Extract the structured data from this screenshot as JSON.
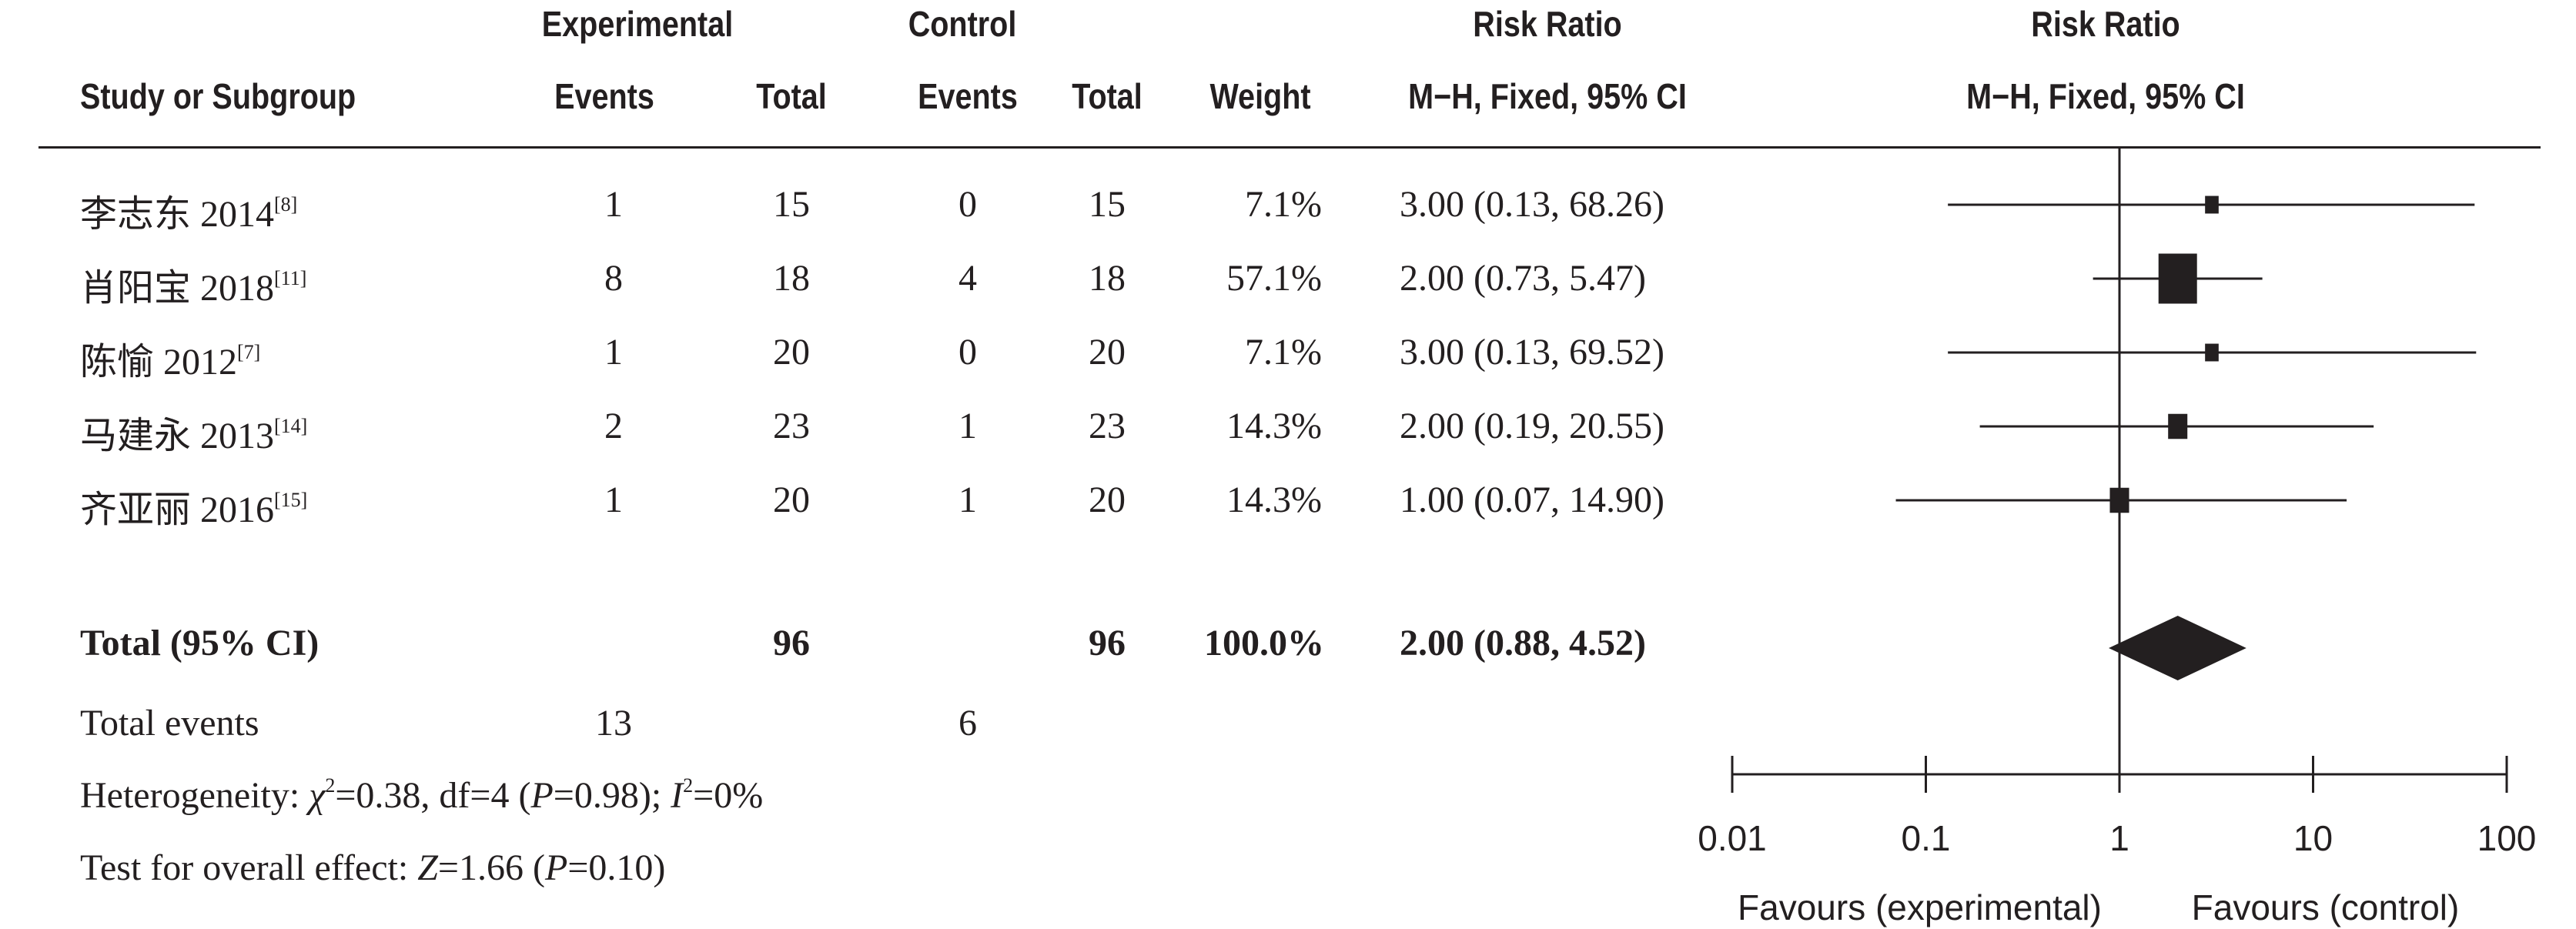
{
  "header": {
    "group_exp": "Experimental",
    "group_ctrl": "Control",
    "rr_top": "Risk Ratio",
    "rr_plot_top": "Risk Ratio",
    "study": "Study or Subgroup",
    "exp_events": "Events",
    "exp_total": "Total",
    "ctrl_events": "Events",
    "ctrl_total": "Total",
    "weight": "Weight",
    "rr_method": "M−H, Fixed, 95% CI",
    "rr_plot_method": "M−H, Fixed, 95% CI"
  },
  "studies": [
    {
      "name": "李志东 2014",
      "ref": "[8]",
      "exp_events": "1",
      "exp_total": "15",
      "ctrl_events": "0",
      "ctrl_total": "15",
      "weight": "7.1%",
      "rr_ci": "3.00 (0.13, 68.26)"
    },
    {
      "name": "肖阳宝 2018",
      "ref": "[11]",
      "exp_events": "8",
      "exp_total": "18",
      "ctrl_events": "4",
      "ctrl_total": "18",
      "weight": "57.1%",
      "rr_ci": "2.00 (0.73, 5.47)"
    },
    {
      "name": "陈愉 2012",
      "ref": "[7]",
      "exp_events": "1",
      "exp_total": "20",
      "ctrl_events": "0",
      "ctrl_total": "20",
      "weight": "7.1%",
      "rr_ci": "3.00 (0.13, 69.52)"
    },
    {
      "name": "马建永 2013",
      "ref": "[14]",
      "exp_events": "2",
      "exp_total": "23",
      "ctrl_events": "1",
      "ctrl_total": "23",
      "weight": "14.3%",
      "rr_ci": "2.00 (0.19, 20.55)"
    },
    {
      "name": "齐亚丽 2016",
      "ref": "[15]",
      "exp_events": "1",
      "exp_total": "20",
      "ctrl_events": "1",
      "ctrl_total": "20",
      "weight": "14.3%",
      "rr_ci": "1.00 (0.07, 14.90)"
    }
  ],
  "total": {
    "label": "Total (95% CI)",
    "exp_total": "96",
    "ctrl_total": "96",
    "weight": "100.0%",
    "rr_ci": "2.00 (0.88, 4.52)"
  },
  "total_events": {
    "label": "Total events",
    "exp": "13",
    "ctrl": "6"
  },
  "heterogeneity": {
    "prefix": "Heterogeneity: ",
    "chi_sym": "χ",
    "chi_sup": "2",
    "chi_val": "=0.38, df=4 (",
    "p_sym": "P",
    "p_val": "=0.98); ",
    "i_sym": "I",
    "i_sup": "2",
    "i_val": "=0%"
  },
  "overall_effect": {
    "prefix": "Test for overall effect: ",
    "z_sym": "Z",
    "z_val": "=1.66 (",
    "p_sym": "P",
    "p_val": "=0.10)"
  },
  "chart_data": {
    "type": "forest",
    "scale": "log",
    "xlim": [
      0.01,
      100
    ],
    "ticks": [
      0.01,
      0.1,
      1,
      10,
      100
    ],
    "tick_labels": [
      "0.01",
      "0.1",
      "1",
      "10",
      "100"
    ],
    "null_value": 1,
    "left_label": "Favours (experimental)",
    "right_label": "Favours (control)",
    "studies": [
      {
        "rr": 3.0,
        "lo": 0.13,
        "hi": 68.26,
        "weight": 7.1
      },
      {
        "rr": 2.0,
        "lo": 0.73,
        "hi": 5.47,
        "weight": 57.1
      },
      {
        "rr": 3.0,
        "lo": 0.13,
        "hi": 69.52,
        "weight": 7.1
      },
      {
        "rr": 2.0,
        "lo": 0.19,
        "hi": 20.55,
        "weight": 14.3
      },
      {
        "rr": 1.0,
        "lo": 0.07,
        "hi": 14.9,
        "weight": 14.3
      }
    ],
    "pooled": {
      "rr": 2.0,
      "lo": 0.88,
      "hi": 4.52
    }
  }
}
